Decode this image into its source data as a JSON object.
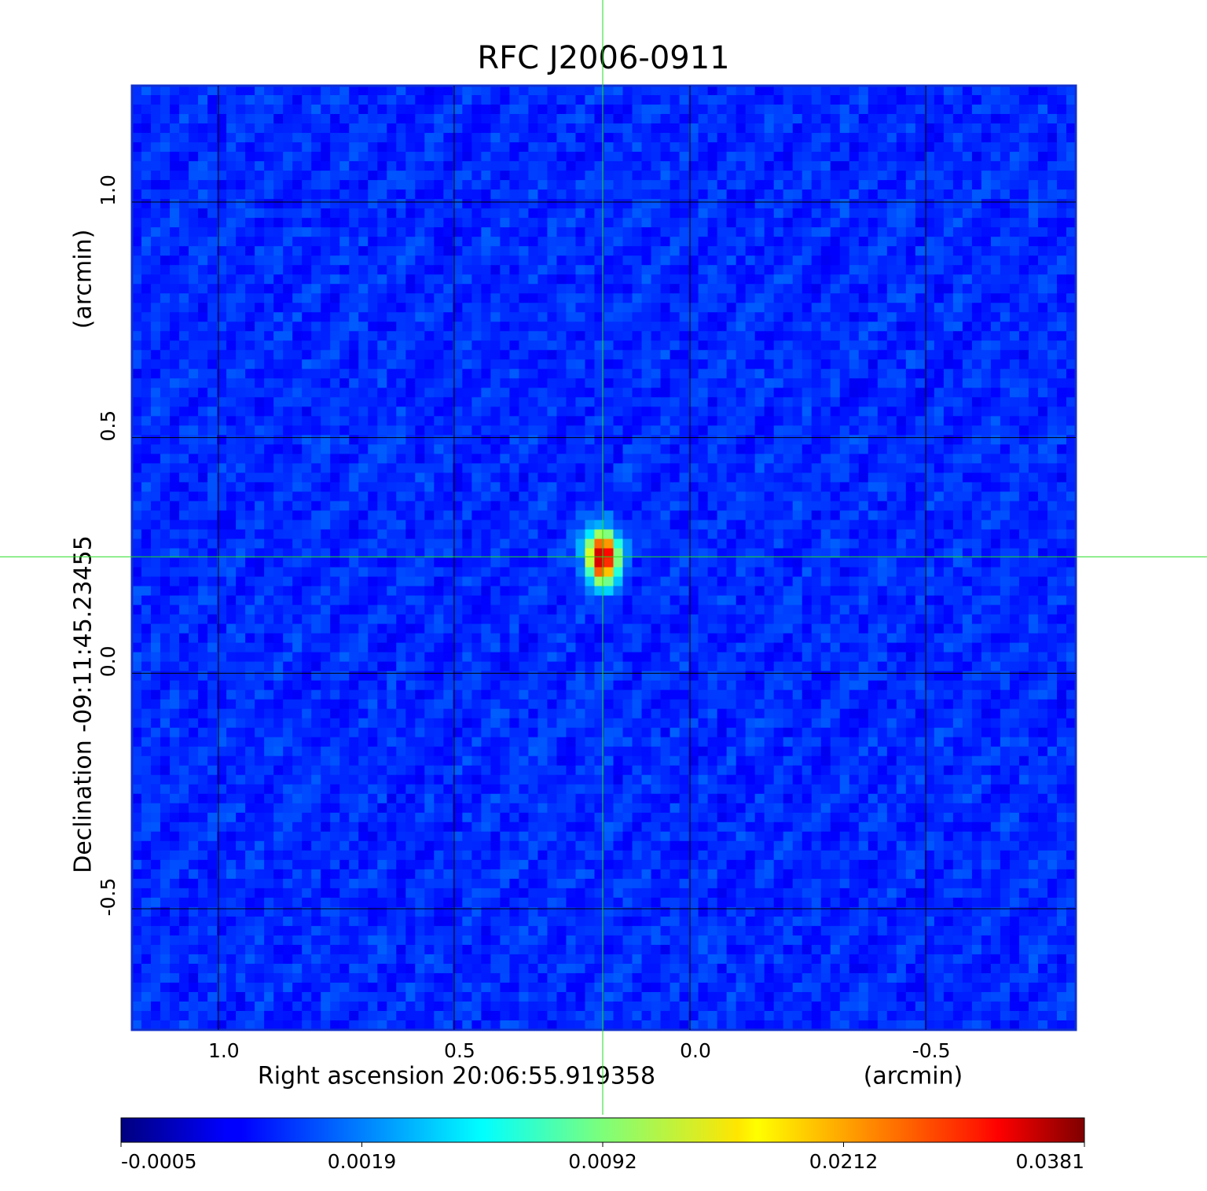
{
  "chart_data": {
    "type": "image",
    "title": "RFC J2006-0911",
    "title_color": "#1414d2",
    "x_label": "Right ascension  20:06:55.919358",
    "x_unit": "(arcmin)",
    "y_label": "Declination  -09:11:45.23455",
    "y_unit": "(arcmin)",
    "xlim": [
      1.183,
      -0.818
    ],
    "ylim": [
      -0.757,
      1.247
    ],
    "xticks": [
      {
        "value": 1,
        "label": "1.0"
      },
      0.5,
      {
        "value": 0,
        "label": "0.0"
      },
      -0.5
    ],
    "yticks": [
      {
        "value": 1,
        "label": "1.0"
      },
      0.5,
      {
        "value": 0,
        "label": "0.0"
      },
      -0.5
    ],
    "grid": true,
    "colormap": "jet",
    "crosshair": {
      "x": 0.185,
      "y": 0.247,
      "color": "#22dd22"
    },
    "colorbar": {
      "ticks": [
        -0.0005,
        0.0019,
        0.0092,
        0.0212,
        0.0381
      ]
    }
  }
}
